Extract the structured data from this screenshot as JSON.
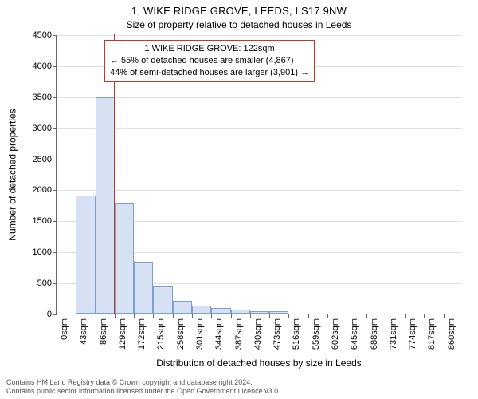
{
  "titles": {
    "main": "1, WIKE RIDGE GROVE, LEEDS, LS17 9NW",
    "sub": "Size of property relative to detached houses in Leeds",
    "x_axis": "Distribution of detached houses by size in Leeds",
    "y_axis": "Number of detached properties"
  },
  "chart": {
    "type": "histogram",
    "ylim_max": 4500,
    "ytick_step": 500,
    "bar_fill": "#d6e2f3",
    "bar_stroke": "#7f9ecf",
    "grid_color": "#e0e0e0",
    "background_color": "#ffffff",
    "bars": [
      {
        "x_label": "0sqm",
        "value": 0
      },
      {
        "x_label": "43sqm",
        "value": 1900
      },
      {
        "x_label": "86sqm",
        "value": 3480
      },
      {
        "x_label": "129sqm",
        "value": 1770
      },
      {
        "x_label": "172sqm",
        "value": 830
      },
      {
        "x_label": "215sqm",
        "value": 440
      },
      {
        "x_label": "258sqm",
        "value": 200
      },
      {
        "x_label": "301sqm",
        "value": 130
      },
      {
        "x_label": "344sqm",
        "value": 90
      },
      {
        "x_label": "387sqm",
        "value": 60
      },
      {
        "x_label": "430sqm",
        "value": 45
      },
      {
        "x_label": "473sqm",
        "value": 35
      },
      {
        "x_label": "516sqm",
        "value": 0
      },
      {
        "x_label": "559sqm",
        "value": 0
      },
      {
        "x_label": "602sqm",
        "value": 0
      },
      {
        "x_label": "645sqm",
        "value": 0
      },
      {
        "x_label": "688sqm",
        "value": 0
      },
      {
        "x_label": "731sqm",
        "value": 0
      },
      {
        "x_label": "774sqm",
        "value": 0
      },
      {
        "x_label": "817sqm",
        "value": 0
      },
      {
        "x_label": "860sqm",
        "value": 0
      }
    ],
    "marker": {
      "color": "#c0392b",
      "x_value": 122,
      "x_range_max": 860
    },
    "annotation": {
      "border_color": "#c0392b",
      "lines": [
        "1 WIKE RIDGE GROVE: 122sqm",
        "← 55% of detached houses are smaller (4,867)",
        "44% of semi-detached houses are larger (3,901) →"
      ]
    }
  },
  "footer": {
    "line1": "Contains HM Land Registry data © Crown copyright and database right 2024.",
    "line2": "Contains public sector information licensed under the Open Government Licence v3.0."
  }
}
